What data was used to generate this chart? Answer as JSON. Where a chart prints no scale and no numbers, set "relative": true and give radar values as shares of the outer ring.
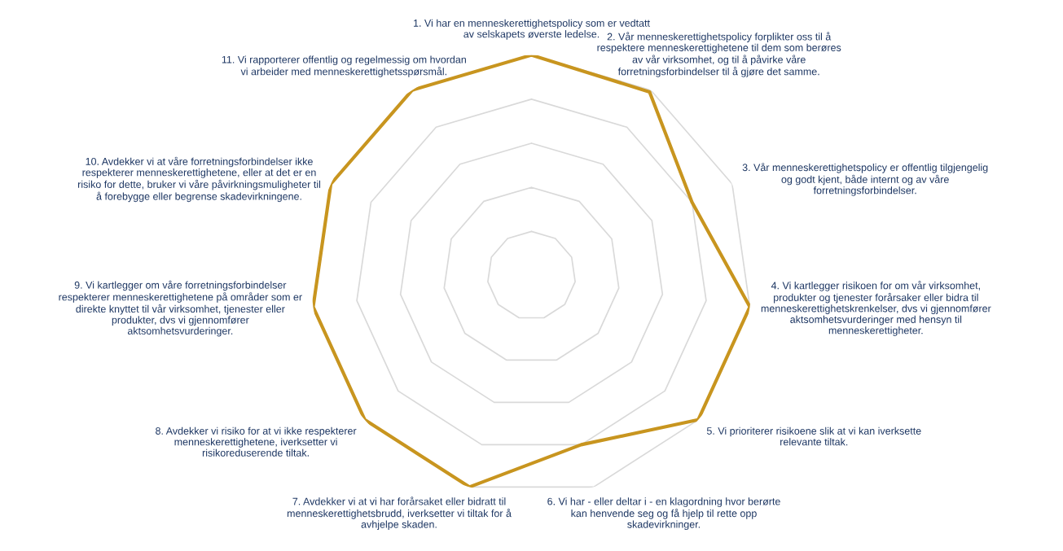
{
  "chart_data": {
    "type": "radar",
    "relative": true,
    "grid": true,
    "categories": [
      "1. Vi har en menneskerettighetspolicy som er vedtatt\nav selskapets øverste ledelse.",
      "2. Vår menneskerettighetspolicy forplikter oss til å\nrespektere menneskerettighetene til dem som berøres\nav vår virksomhet, og til å påvirke våre\nforretningsforbindelser til å gjøre det samme.",
      "3. Vår menneskerettighetspolicy er offentlig tilgjengelig\nog godt kjent, både internt og av våre\nforretningsforbindelser.",
      "4. Vi kartlegger risikoen for om vår virksomhet,\nprodukter og tjenester forårsaker eller bidra til\nmenneskerettighetskrenkelser, dvs vi gjennomfører\naktsomhetsvurderinger med hensyn til\nmenneskerettigheter.",
      "5. Vi prioriterer risikoene slik at vi kan iverksette\nrelevante tiltak.",
      "6. Vi har - eller deltar i - en klagordning hvor berørte\nkan henvende seg og få hjelp til rette opp\nskadevirkninger.",
      "7. Avdekker vi at vi har forårsaket eller bidratt til\nmenneskerettighetsbrudd, iverksetter vi tiltak for å\navhjelpe skaden.",
      "8. Avdekker vi risiko for at vi ikke respekterer\nmenneskerettighetene, iverksetter vi\nrisikoreduserende tiltak.",
      "9. Vi kartlegger om våre forretningsforbindelser\nrespekterer menneskerettighetene på områder som er\ndirekte knyttet til vår virksomhet, tjenester eller\nprodukter, dvs vi gjennomfører\naktsomhetsvurderinger.",
      "10. Avdekker vi at våre forretningsforbindelser ikke\nrespekterer menneskerettighetene, eller at det er en\nrisiko for dette, bruker vi våre påvirkningsmuligheter til\nå forebygge eller begrense skadevirkningene.",
      "11. Vi rapporterer offentlig og regelmessig om hvordan\nvi arbeider med menneskerettighetsspørsmål."
    ],
    "series": [
      {
        "color": "#c8951f",
        "values": [
          1.0,
          0.99,
          0.8,
          1.0,
          1.0,
          0.8,
          1.0,
          1.0,
          1.0,
          1.0,
          1.0
        ]
      }
    ]
  }
}
